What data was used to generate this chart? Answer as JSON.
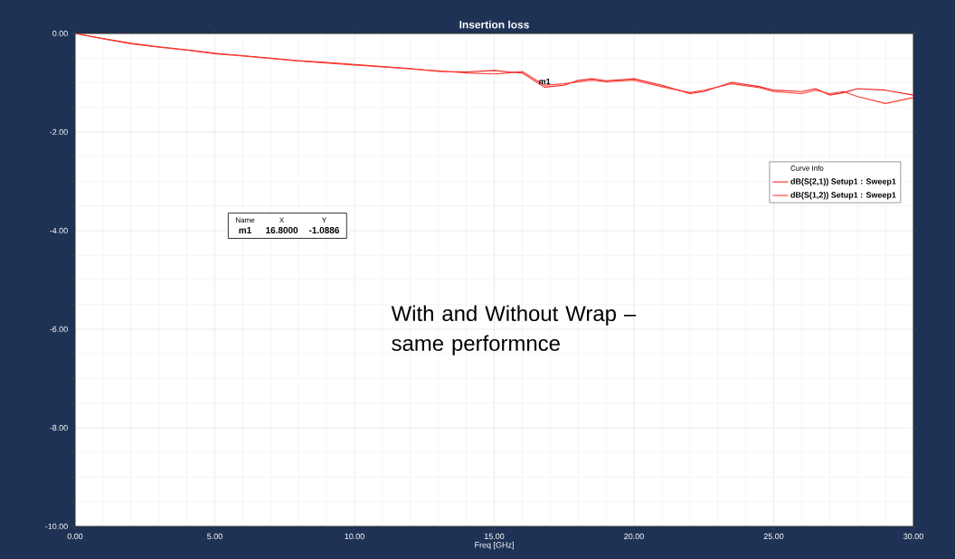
{
  "chart_data": {
    "type": "line",
    "title": "Insertion loss",
    "xlabel": "Freq [GHz]",
    "legend_title": "Curve Info",
    "legend": "right",
    "grid": true,
    "xlim": [
      0,
      30
    ],
    "ylim": [
      -10,
      0
    ],
    "xticks": [
      {
        "value": 0,
        "label": "0.00"
      },
      {
        "value": 5,
        "label": "5.00"
      },
      {
        "value": 10,
        "label": "10.00"
      },
      {
        "value": 15,
        "label": "15.00"
      },
      {
        "value": 20,
        "label": "20.00"
      },
      {
        "value": 25,
        "label": "25.00"
      },
      {
        "value": 30,
        "label": "30.00"
      }
    ],
    "yticks": [
      {
        "value": -10,
        "label": "-10.00"
      },
      {
        "value": -8,
        "label": "-8.00"
      },
      {
        "value": -6,
        "label": "-6.00"
      },
      {
        "value": -4,
        "label": "-4.00"
      },
      {
        "value": -2,
        "label": "-2.00"
      },
      {
        "value": 0,
        "label": "0.00"
      }
    ],
    "x": [
      0,
      1,
      2,
      3,
      4,
      5,
      6,
      7,
      8,
      9,
      10,
      11,
      12,
      13,
      14,
      15,
      15.5,
      16,
      16.8,
      17.5,
      18,
      18.5,
      19,
      20,
      21,
      22,
      22.5,
      23.5,
      24.5,
      25,
      26,
      26.5,
      27,
      27.5,
      28,
      29,
      30
    ],
    "series": [
      {
        "name": "dB(S(2,1)) Setup1 : Sweep1",
        "color": "#e8201c",
        "values": [
          0,
          -0.1,
          -0.2,
          -0.27,
          -0.33,
          -0.4,
          -0.45,
          -0.5,
          -0.55,
          -0.59,
          -0.63,
          -0.67,
          -0.71,
          -0.77,
          -0.78,
          -0.75,
          -0.78,
          -0.8,
          -1.09,
          -1.05,
          -0.95,
          -0.92,
          -0.96,
          -0.92,
          -1.05,
          -1.22,
          -1.18,
          -0.99,
          -1.08,
          -1.15,
          -1.18,
          -1.12,
          -1.25,
          -1.2,
          -1.12,
          -1.15,
          -1.25
        ]
      },
      {
        "name": "dB(S(1,2)) Setup1 : Sweep1",
        "color": "#ff3b30",
        "values": [
          0,
          -0.11,
          -0.21,
          -0.28,
          -0.34,
          -0.41,
          -0.46,
          -0.51,
          -0.56,
          -0.6,
          -0.64,
          -0.68,
          -0.72,
          -0.76,
          -0.8,
          -0.82,
          -0.8,
          -0.77,
          -1.05,
          -1.02,
          -0.98,
          -0.95,
          -0.98,
          -0.95,
          -1.08,
          -1.2,
          -1.15,
          -1.02,
          -1.1,
          -1.18,
          -1.22,
          -1.15,
          -1.22,
          -1.18,
          -1.28,
          -1.42,
          -1.3
        ]
      }
    ],
    "annotations": [
      "Name",
      "X",
      "Y",
      "m1",
      "16.8000",
      "-1.0886",
      "With and Without Wrap – same performnce",
      {
        "text": "m1",
        "x": 16.8,
        "y": -1.0886
      }
    ]
  }
}
